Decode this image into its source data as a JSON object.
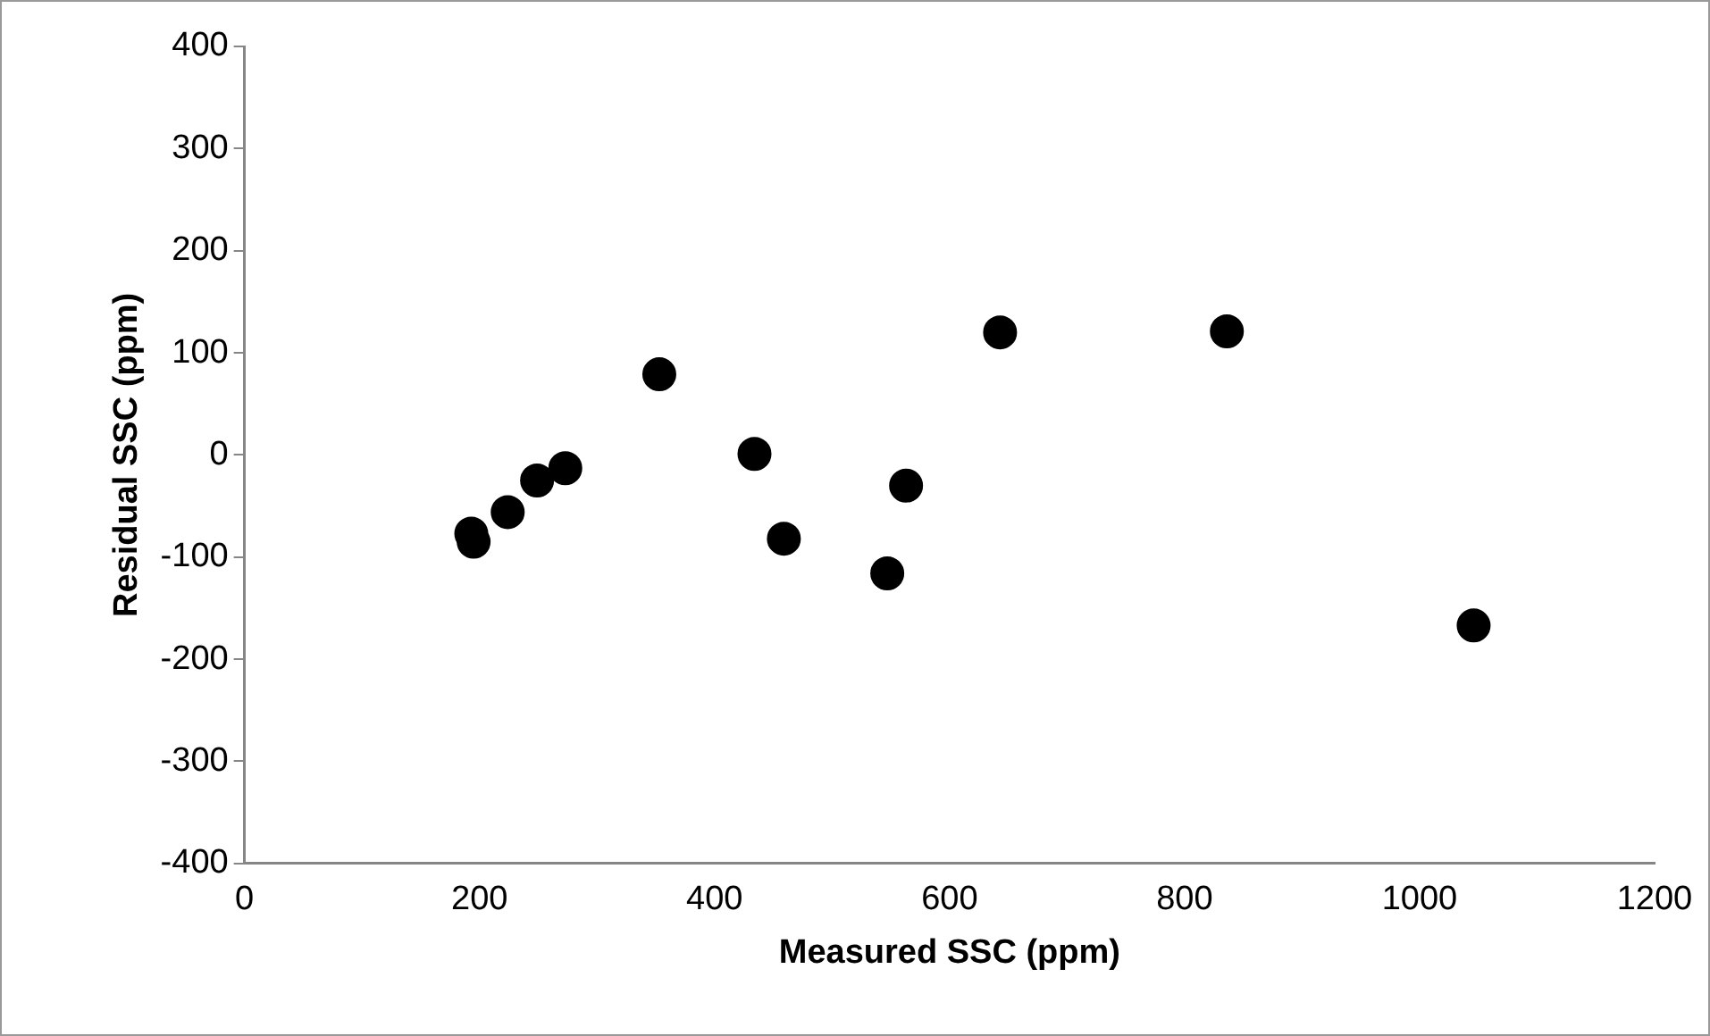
{
  "chart_data": {
    "type": "scatter",
    "xlabel": "Measured SSC (ppm)",
    "ylabel": "Residual SSC (ppm)",
    "x": [
      193,
      195,
      224,
      249,
      273,
      353,
      434,
      459,
      547,
      563,
      643,
      836,
      1046
    ],
    "series": [
      {
        "color": "#000000",
        "values": [
          -77,
          -85,
          -56,
          -25,
          -13,
          79,
          1,
          -82,
          -116,
          -30,
          120,
          121,
          -167
        ]
      }
    ],
    "xlim": [
      0,
      1200
    ],
    "xticks": [
      0,
      200,
      400,
      600,
      800,
      1000,
      1200
    ],
    "ylim": [
      -400,
      400
    ],
    "yticks": [
      -400,
      -300,
      -200,
      -100,
      0,
      100,
      200,
      300,
      400
    ],
    "grid": false,
    "legend": false,
    "marker": "circle"
  }
}
